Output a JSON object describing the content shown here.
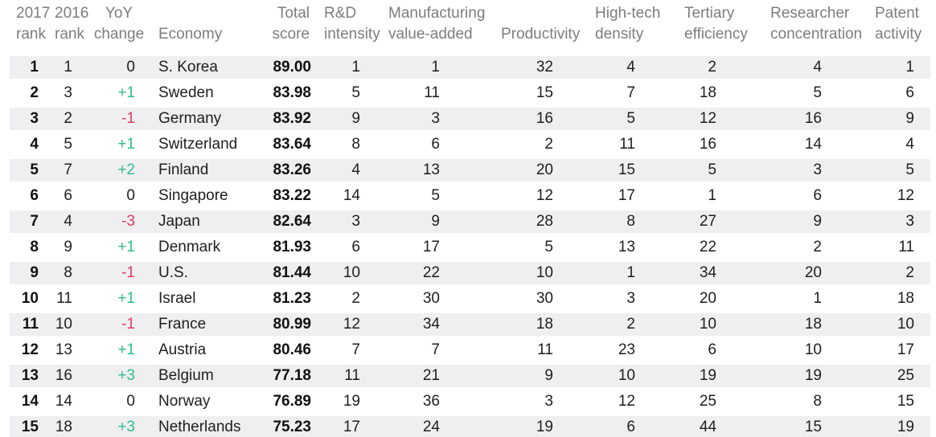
{
  "colors": {
    "positive_change": "#2fbd8f",
    "negative_change": "#e23c64",
    "header_text": "#7d7d7d",
    "body_text": "#1e1e1e",
    "rank_text": "#111111",
    "row_stripe": "#efeff1",
    "background": "#ffffff"
  },
  "table": {
    "header_lines": [
      {
        "line1": "2017",
        "line2": "rank"
      },
      {
        "line1": "2016",
        "line2": "rank"
      },
      {
        "line1": "YoY",
        "line2": "change"
      },
      {
        "line1": "",
        "line2": "Economy"
      },
      {
        "line1": "Total",
        "line2": "score"
      },
      {
        "line1": "R&D",
        "line2": "intensity"
      },
      {
        "line1": "Manufacturing",
        "line2": "value-added"
      },
      {
        "line1": "",
        "line2": "Productivity"
      },
      {
        "line1": "High-tech",
        "line2": "density"
      },
      {
        "line1": "Tertiary",
        "line2": "efficiency"
      },
      {
        "line1": "Researcher",
        "line2": "concentration"
      },
      {
        "line1": "Patent",
        "line2": "activity"
      }
    ]
  },
  "chart_data": {
    "type": "table",
    "columns": [
      "2017 rank",
      "2016 rank",
      "YoY change",
      "Economy",
      "Total score",
      "R&D intensity",
      "Manufacturing value-added",
      "Productivity",
      "High-tech density",
      "Tertiary efficiency",
      "Researcher concentration",
      "Patent activity"
    ],
    "rows": [
      [
        "1",
        "1",
        "0",
        "S. Korea",
        "89.00",
        "1",
        "1",
        "32",
        "4",
        "2",
        "4",
        "1"
      ],
      [
        "2",
        "3",
        "+1",
        "Sweden",
        "83.98",
        "5",
        "11",
        "15",
        "7",
        "18",
        "5",
        "6"
      ],
      [
        "3",
        "2",
        "-1",
        "Germany",
        "83.92",
        "9",
        "3",
        "16",
        "5",
        "12",
        "16",
        "9"
      ],
      [
        "4",
        "5",
        "+1",
        "Switzerland",
        "83.64",
        "8",
        "6",
        "2",
        "11",
        "16",
        "14",
        "4"
      ],
      [
        "5",
        "7",
        "+2",
        "Finland",
        "83.26",
        "4",
        "13",
        "20",
        "15",
        "5",
        "3",
        "5"
      ],
      [
        "6",
        "6",
        "0",
        "Singapore",
        "83.22",
        "14",
        "5",
        "12",
        "17",
        "1",
        "6",
        "12"
      ],
      [
        "7",
        "4",
        "-3",
        "Japan",
        "82.64",
        "3",
        "9",
        "28",
        "8",
        "27",
        "9",
        "3"
      ],
      [
        "8",
        "9",
        "+1",
        "Denmark",
        "81.93",
        "6",
        "17",
        "5",
        "13",
        "22",
        "2",
        "11"
      ],
      [
        "9",
        "8",
        "-1",
        "U.S.",
        "81.44",
        "10",
        "22",
        "10",
        "1",
        "34",
        "20",
        "2"
      ],
      [
        "10",
        "11",
        "+1",
        "Israel",
        "81.23",
        "2",
        "30",
        "30",
        "3",
        "20",
        "1",
        "18"
      ],
      [
        "11",
        "10",
        "-1",
        "France",
        "80.99",
        "12",
        "34",
        "18",
        "2",
        "10",
        "18",
        "10"
      ],
      [
        "12",
        "13",
        "+1",
        "Austria",
        "80.46",
        "7",
        "7",
        "11",
        "23",
        "6",
        "10",
        "17"
      ],
      [
        "13",
        "16",
        "+3",
        "Belgium",
        "77.18",
        "11",
        "21",
        "9",
        "10",
        "19",
        "19",
        "25"
      ],
      [
        "14",
        "14",
        "0",
        "Norway",
        "76.89",
        "19",
        "36",
        "3",
        "12",
        "25",
        "8",
        "15"
      ],
      [
        "15",
        "18",
        "+3",
        "Netherlands",
        "75.23",
        "17",
        "24",
        "19",
        "6",
        "44",
        "15",
        "19"
      ]
    ],
    "layout": {
      "striped_rows": "odd",
      "stripe_color": "#efeff1",
      "value_alignment": "right",
      "positive_change_color": "#2fbd8f",
      "negative_change_color": "#e23c64"
    }
  }
}
